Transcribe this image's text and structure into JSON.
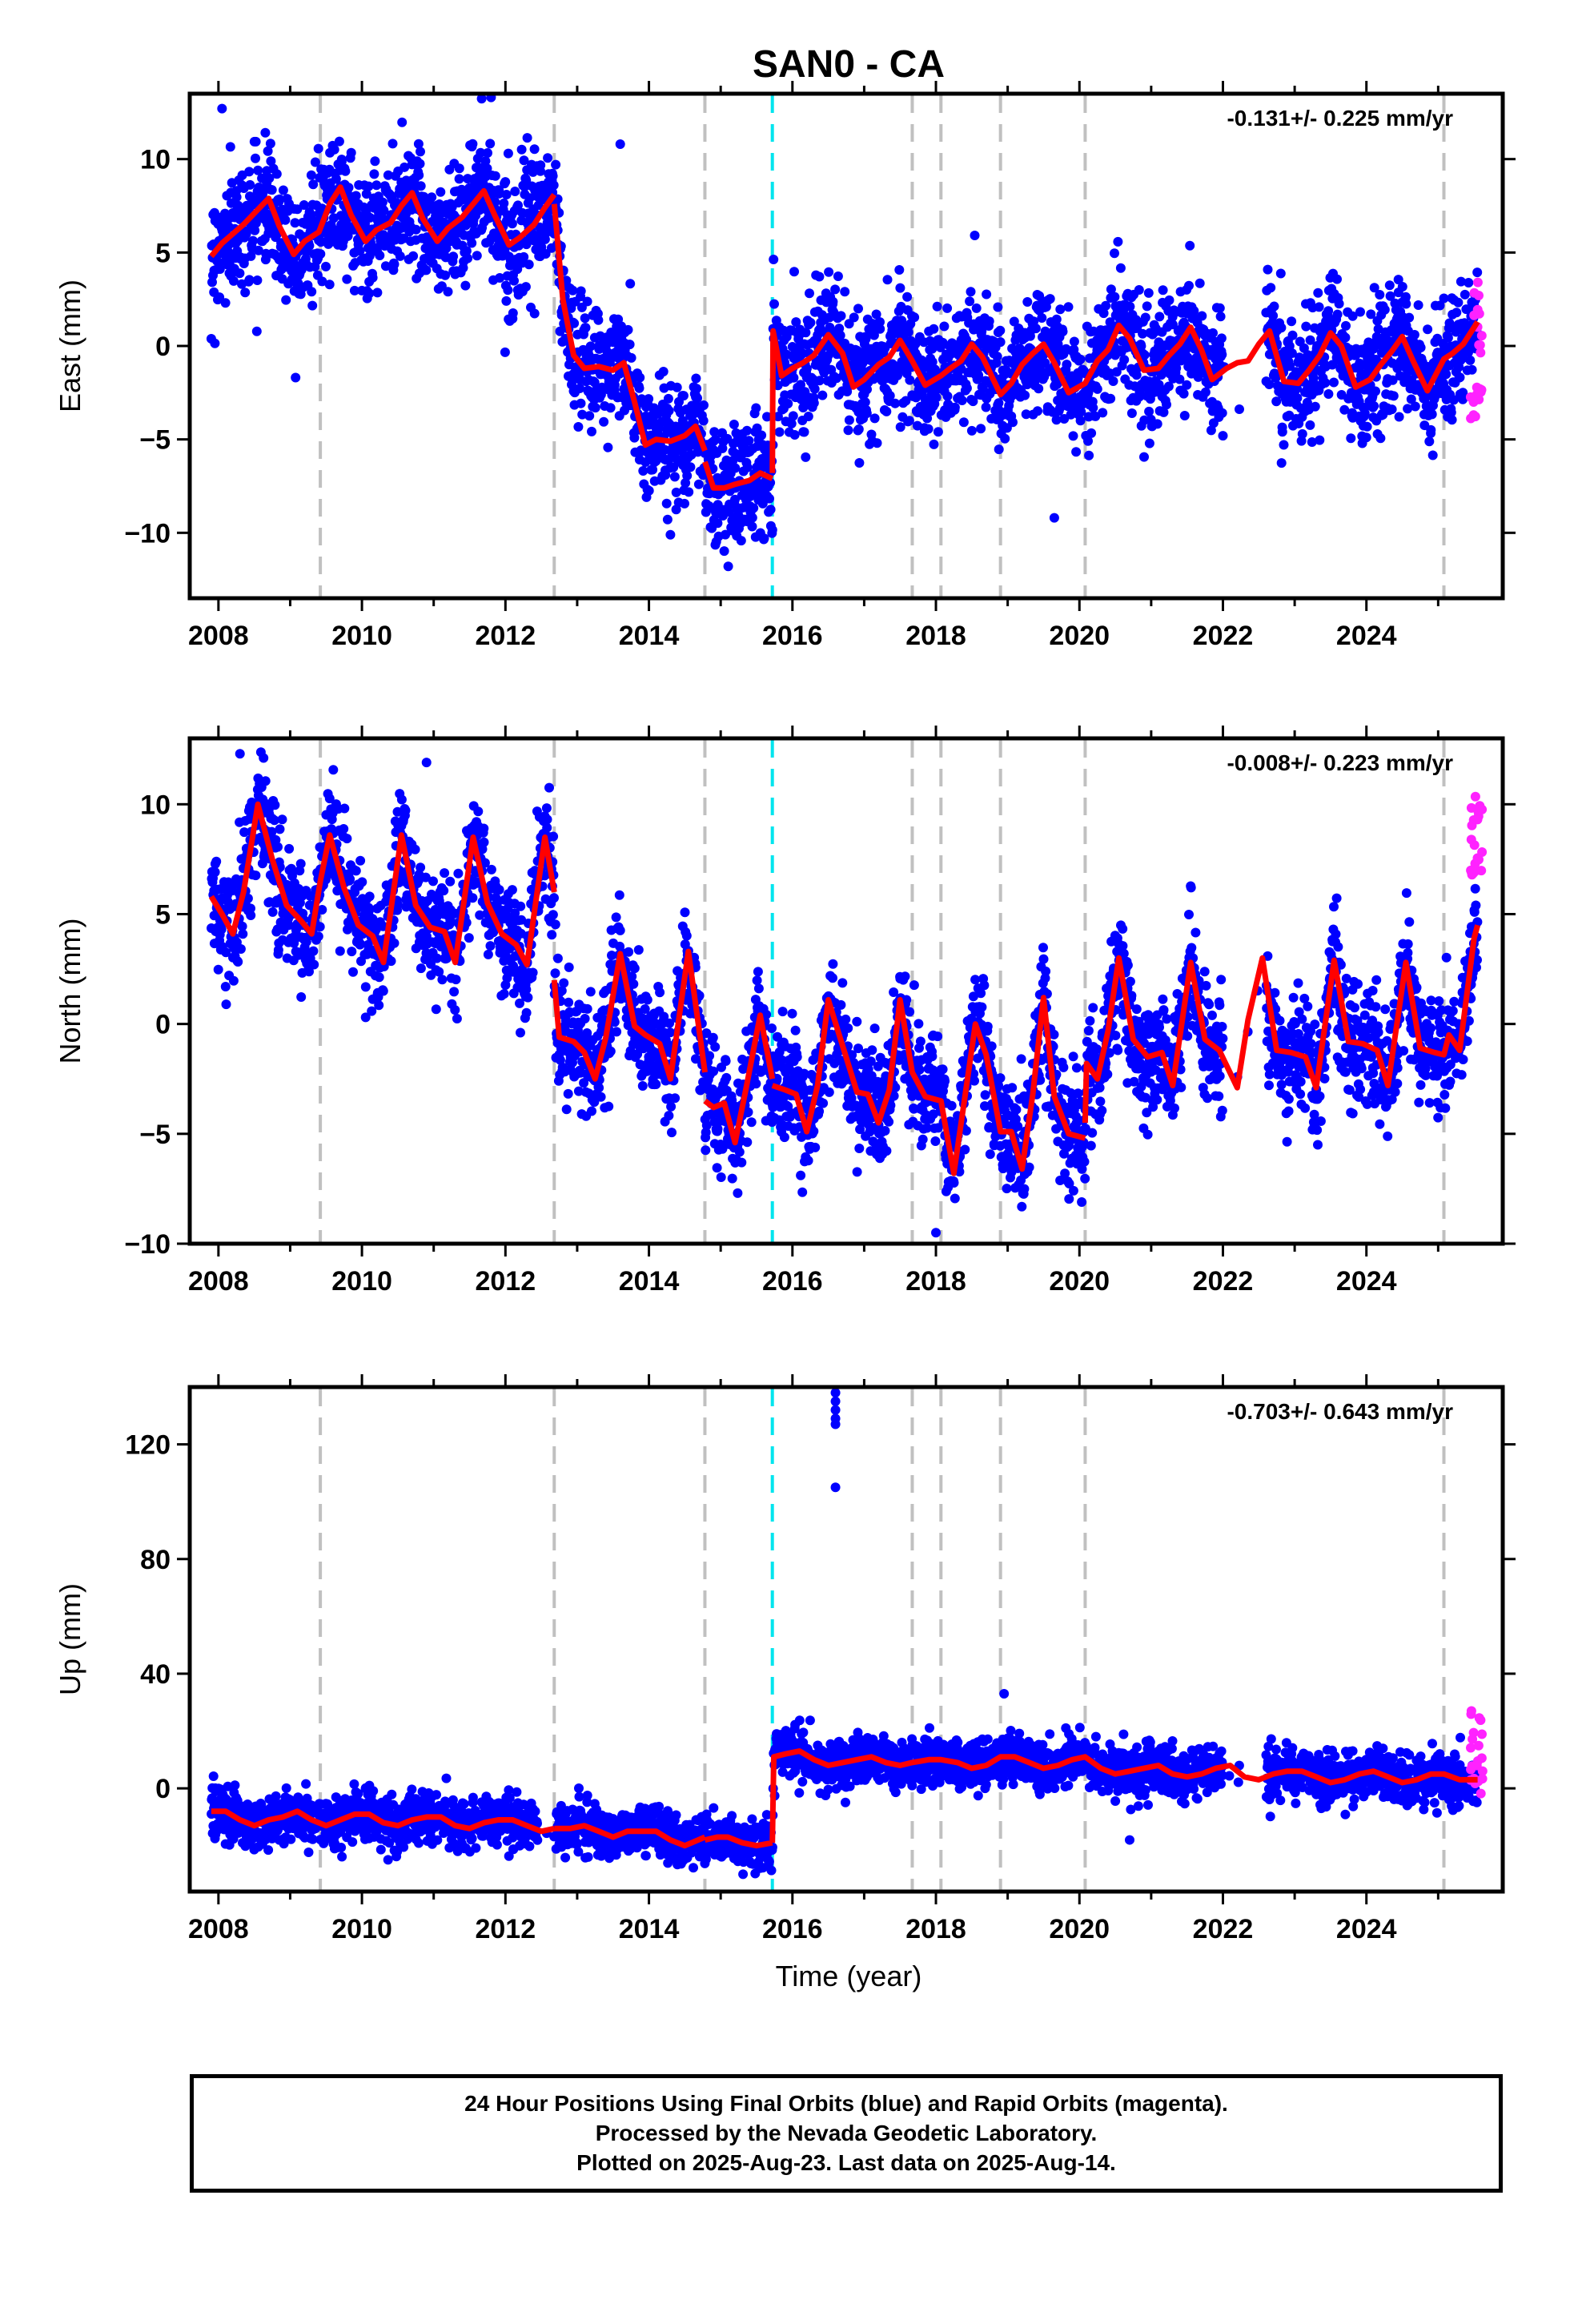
{
  "title": "SAN0 - CA",
  "x_label": "Time (year)",
  "footer": {
    "line1": "24 Hour Positions Using Final Orbits (blue) and Rapid Orbits (magenta).",
    "line2": "Processed by the Nevada Geodetic Laboratory.",
    "line3": "Plotted on 2025-Aug-23. Last data on 2025-Aug-14."
  },
  "colors": {
    "final_orbits": "#0000ff",
    "rapid_orbits": "#ff22ff",
    "model": "#ff0000",
    "equipment_change": "#c0c0c0",
    "other_event": "#00e5ee"
  },
  "chart_data": [
    {
      "type": "scatter",
      "ylabel": "East (mm)",
      "rate_text": "-0.131+/- 0.225 mm/yr",
      "xlim": [
        2007.6,
        2025.9
      ],
      "ylim": [
        -13.5,
        13.5
      ],
      "xticks": [
        2008,
        2010,
        2012,
        2014,
        2016,
        2018,
        2020,
        2022,
        2024
      ],
      "yticks": [
        -10,
        -5,
        0,
        5,
        10
      ],
      "grid": false,
      "vlines_dashed_gray": [
        2009.42,
        2012.68,
        2014.78,
        2017.67,
        2018.07,
        2018.9,
        2020.08,
        2025.08
      ],
      "vlines_dashed_cyan": [
        2015.72
      ],
      "model_segments": [
        {
          "x": [
            2007.9,
            2008.05,
            2008.2,
            2008.35,
            2008.55,
            2008.7,
            2008.85,
            2009.05,
            2009.2,
            2009.4,
            2009.55,
            2009.7,
            2009.85,
            2010.05,
            2010.2,
            2010.4,
            2010.55,
            2010.7,
            2010.85,
            2011.05,
            2011.2,
            2011.4,
            2011.55,
            2011.7,
            2011.85,
            2012.05,
            2012.2,
            2012.4,
            2012.55,
            2012.68
          ],
          "y": [
            4.8,
            5.5,
            6.0,
            6.5,
            7.3,
            7.9,
            6.4,
            4.9,
            5.6,
            6.1,
            7.6,
            8.5,
            7.0,
            5.6,
            6.2,
            6.6,
            7.5,
            8.2,
            6.8,
            5.6,
            6.3,
            6.9,
            7.6,
            8.3,
            7.0,
            5.4,
            5.8,
            6.5,
            7.4,
            8.1
          ]
        },
        {
          "x": [
            2012.68,
            2012.8,
            2012.95,
            2013.1,
            2013.3,
            2013.5,
            2013.65,
            2013.8,
            2013.95,
            2014.1,
            2014.3,
            2014.5,
            2014.65,
            2014.78
          ],
          "y": [
            7.6,
            2.5,
            -0.5,
            -1.2,
            -1.1,
            -1.3,
            -0.9,
            -3.0,
            -5.3,
            -5.0,
            -5.1,
            -4.8,
            -4.3,
            -5.6
          ]
        },
        {
          "x": [
            2014.78,
            2014.9,
            2015.05,
            2015.2,
            2015.4,
            2015.55,
            2015.72
          ],
          "y": [
            -6.2,
            -7.6,
            -7.6,
            -7.4,
            -7.2,
            -6.8,
            -7.1
          ]
        },
        {
          "x": [
            2015.72,
            2015.73,
            2015.85,
            2016.0,
            2016.15,
            2016.3,
            2016.5,
            2016.7,
            2016.85,
            2017.0,
            2017.2,
            2017.35,
            2017.5,
            2017.67,
            2017.85,
            2018.07,
            2018.2,
            2018.35,
            2018.5,
            2018.65,
            2018.9,
            2019.05,
            2019.2,
            2019.35,
            2019.5,
            2019.65,
            2019.85,
            2020.08,
            2020.25,
            2020.4,
            2020.55,
            2020.7,
            2020.9,
            2021.1,
            2021.25,
            2021.4,
            2021.55,
            2021.7,
            2021.85,
            2022.05,
            2022.2,
            2022.35,
            2022.5,
            2022.65,
            2022.85,
            2023.05,
            2023.2,
            2023.35,
            2023.5,
            2023.65,
            2023.85,
            2024.05,
            2024.2,
            2024.35,
            2024.5,
            2024.65,
            2024.85,
            2025.08,
            2025.2,
            2025.35,
            2025.5,
            2025.55
          ],
          "y": [
            -6.8,
            0.8,
            -1.6,
            -1.2,
            -0.9,
            -0.5,
            0.6,
            -0.4,
            -2.2,
            -1.8,
            -1.0,
            -0.6,
            0.3,
            -0.8,
            -2.1,
            -1.6,
            -1.2,
            -0.8,
            0.1,
            -0.6,
            -2.6,
            -2.0,
            -1.0,
            -0.4,
            0.1,
            -0.9,
            -2.5,
            -2.0,
            -0.8,
            -0.2,
            1.1,
            0.4,
            -1.3,
            -1.2,
            -0.5,
            0.1,
            1.0,
            -0.2,
            -1.8,
            -1.2,
            -0.9,
            -0.8,
            0.1,
            0.8,
            -1.9,
            -2.0,
            -1.3,
            -0.5,
            0.7,
            0.0,
            -2.2,
            -1.8,
            -1.0,
            -0.3,
            0.5,
            -0.8,
            -2.4,
            -0.7,
            -0.4,
            0.1,
            1.0,
            1.3
          ]
        }
      ],
      "noise_sd": 1.6,
      "n_points": 3600,
      "gaps": [
        [
          2022.0,
          2022.6
        ]
      ],
      "outliers": [
        {
          "x": 2013.6,
          "y": 10.8
        },
        {
          "x": 2019.65,
          "y": -9.2
        },
        {
          "x": 2008.05,
          "y": 12.7
        },
        {
          "x": 2011.8,
          "y": 13.3
        }
      ],
      "rapid_points": {
        "x_start": 2025.45,
        "x_end": 2025.62,
        "y_min": -4.2,
        "y_max": 3.6,
        "count": 22
      }
    },
    {
      "type": "scatter",
      "ylabel": "North (mm)",
      "rate_text": "-0.008+/- 0.223 mm/yr",
      "xlim": [
        2007.6,
        2025.9
      ],
      "ylim": [
        -10,
        13
      ],
      "xticks": [
        2008,
        2010,
        2012,
        2014,
        2016,
        2018,
        2020,
        2022,
        2024
      ],
      "yticks": [
        -10,
        -5,
        0,
        5,
        10
      ],
      "grid": false,
      "vlines_dashed_gray": [
        2009.42,
        2012.68,
        2014.78,
        2017.67,
        2018.07,
        2018.9,
        2020.08,
        2025.08
      ],
      "vlines_dashed_cyan": [
        2015.72
      ],
      "model_segments": [
        {
          "x": [
            2007.9,
            2008.05,
            2008.2,
            2008.35,
            2008.55,
            2008.75,
            2008.95,
            2009.15,
            2009.3,
            2009.42,
            2009.55,
            2009.75,
            2009.95,
            2010.15,
            2010.3,
            2010.55,
            2010.75,
            2010.95,
            2011.15,
            2011.3,
            2011.55,
            2011.75,
            2011.95,
            2012.15,
            2012.3,
            2012.55,
            2012.68
          ],
          "y": [
            5.8,
            5.0,
            4.1,
            6.0,
            10.0,
            7.5,
            5.4,
            4.7,
            4.1,
            6.5,
            8.6,
            6.2,
            4.5,
            4.0,
            2.8,
            8.6,
            5.4,
            4.4,
            4.2,
            2.8,
            8.5,
            5.5,
            4.1,
            3.6,
            2.7,
            8.5,
            6.0
          ]
        },
        {
          "x": [
            2012.68,
            2012.75,
            2012.95,
            2013.1,
            2013.25,
            2013.4,
            2013.6,
            2013.8,
            2013.95,
            2014.15,
            2014.3,
            2014.55,
            2014.78
          ],
          "y": [
            2.0,
            -0.6,
            -0.8,
            -1.3,
            -2.5,
            -0.6,
            3.2,
            -0.1,
            -0.5,
            -0.9,
            -2.5,
            3.3,
            -2.2
          ]
        },
        {
          "x": [
            2014.78,
            2014.9,
            2015.05,
            2015.2,
            2015.35,
            2015.55,
            2015.72
          ],
          "y": [
            -3.5,
            -3.8,
            -3.6,
            -5.4,
            -3.0,
            0.4,
            -2.5
          ]
        },
        {
          "x": [
            2015.72,
            2015.9,
            2016.05,
            2016.2,
            2016.35,
            2016.5,
            2016.7,
            2016.9,
            2017.05,
            2017.2,
            2017.35,
            2017.5,
            2017.67,
            2017.85,
            2018.07,
            2018.25,
            2018.4,
            2018.55,
            2018.7,
            2018.9,
            2019.05,
            2019.2,
            2019.35,
            2019.5,
            2019.65,
            2019.85,
            2020.08
          ],
          "y": [
            -2.8,
            -3.0,
            -3.2,
            -4.9,
            -2.8,
            1.1,
            -1.0,
            -3.1,
            -3.2,
            -4.5,
            -3.0,
            1.1,
            -2.2,
            -3.3,
            -3.5,
            -6.8,
            -3.4,
            0.0,
            -1.4,
            -4.9,
            -4.9,
            -6.6,
            -3.2,
            1.2,
            -3.3,
            -5.0,
            -5.2
          ]
        },
        {
          "x": [
            2020.08,
            2020.1,
            2020.25,
            2020.4,
            2020.55,
            2020.75,
            2020.95,
            2021.15,
            2021.3,
            2021.55,
            2021.75,
            2021.95,
            2022.2,
            2022.35,
            2022.55,
            2022.75,
            2022.95,
            2023.15,
            2023.3,
            2023.55,
            2023.75,
            2023.95,
            2024.15,
            2024.3,
            2024.55,
            2024.75,
            2024.95,
            2025.08,
            2025.15,
            2025.3,
            2025.5,
            2025.55
          ],
          "y": [
            -4.5,
            -1.8,
            -2.5,
            -0.3,
            3.0,
            -0.7,
            -1.5,
            -1.3,
            -2.8,
            2.8,
            -0.7,
            -1.2,
            -2.9,
            0.2,
            3.0,
            -1.2,
            -1.3,
            -1.5,
            -2.9,
            2.9,
            -0.8,
            -0.9,
            -1.2,
            -2.8,
            2.8,
            -1.1,
            -1.3,
            -1.4,
            -0.5,
            -1.2,
            3.9,
            4.5
          ]
        }
      ],
      "noise_sd": 1.3,
      "n_points": 3600,
      "gaps": [
        [
          2022.0,
          2022.6
        ]
      ],
      "outliers": [
        {
          "x": 2018.0,
          "y": -9.5
        },
        {
          "x": 2008.3,
          "y": 12.3
        },
        {
          "x": 2010.9,
          "y": 11.9
        }
      ],
      "rapid_points": {
        "x_start": 2025.45,
        "x_end": 2025.62,
        "y_min": 6.0,
        "y_max": 10.8,
        "count": 22
      }
    },
    {
      "type": "scatter",
      "ylabel": "Up (mm)",
      "rate_text": "-0.703+/- 0.643 mm/yr",
      "xlim": [
        2007.6,
        2025.9
      ],
      "ylim": [
        -36,
        140
      ],
      "xticks": [
        2008,
        2010,
        2012,
        2014,
        2016,
        2018,
        2020,
        2022,
        2024
      ],
      "yticks": [
        0,
        40,
        80,
        120
      ],
      "grid": false,
      "vlines_dashed_gray": [
        2009.42,
        2012.68,
        2014.78,
        2017.67,
        2018.07,
        2018.9,
        2020.08,
        2025.08
      ],
      "vlines_dashed_cyan": [
        2015.72
      ],
      "model_segments": [
        {
          "x": [
            2007.9,
            2008.1,
            2008.3,
            2008.5,
            2008.7,
            2008.9,
            2009.1,
            2009.3,
            2009.5,
            2009.7,
            2009.9,
            2010.1,
            2010.3,
            2010.5,
            2010.7,
            2010.9,
            2011.1,
            2011.3,
            2011.5,
            2011.7,
            2011.9,
            2012.1,
            2012.3,
            2012.5,
            2012.68
          ],
          "y": [
            -8,
            -8,
            -11,
            -13,
            -11,
            -10,
            -8,
            -11,
            -13,
            -11,
            -9,
            -9,
            -12,
            -13,
            -11,
            -10,
            -10,
            -13,
            -14,
            -12,
            -11,
            -11,
            -13,
            -15,
            -14
          ]
        },
        {
          "x": [
            2012.68,
            2012.9,
            2013.1,
            2013.3,
            2013.5,
            2013.7,
            2013.9,
            2014.1,
            2014.3,
            2014.5,
            2014.78
          ],
          "y": [
            -14,
            -14,
            -13,
            -15,
            -17,
            -15,
            -15,
            -15,
            -18,
            -20,
            -17
          ]
        },
        {
          "x": [
            2014.78,
            2014.95,
            2015.1,
            2015.3,
            2015.5,
            2015.72
          ],
          "y": [
            -18,
            -17,
            -17,
            -19,
            -20,
            -19
          ]
        },
        {
          "x": [
            2015.72,
            2015.74,
            2015.9,
            2016.1,
            2016.3,
            2016.5,
            2016.7,
            2016.9,
            2017.1,
            2017.3,
            2017.5,
            2017.67,
            2017.9,
            2018.07,
            2018.3,
            2018.5,
            2018.7,
            2018.9,
            2019.1,
            2019.3,
            2019.5,
            2019.7,
            2019.9,
            2020.08,
            2020.3,
            2020.5,
            2020.7,
            2020.9,
            2021.1,
            2021.3,
            2021.5,
            2021.7,
            2021.9,
            2022.1,
            2022.3,
            2022.5,
            2022.7,
            2022.9,
            2023.1,
            2023.3,
            2023.5,
            2023.7,
            2023.9,
            2024.1,
            2024.3,
            2024.5,
            2024.7,
            2024.9,
            2025.08,
            2025.3,
            2025.55
          ],
          "y": [
            -19,
            11,
            12,
            13,
            10,
            8,
            9,
            10,
            11,
            9,
            8,
            9,
            10,
            10,
            9,
            7,
            8,
            11,
            11,
            9,
            7,
            8,
            10,
            11,
            7,
            5,
            6,
            7,
            8,
            5,
            4,
            5,
            7,
            8,
            4,
            3,
            5,
            6,
            6,
            4,
            2,
            3,
            5,
            6,
            4,
            2,
            3,
            5,
            5,
            3,
            3
          ]
        }
      ],
      "noise_sd": 4.3,
      "n_points": 3600,
      "gaps": [
        [
          2022.0,
          2022.6
        ],
        [
          2012.45,
          2012.7
        ]
      ],
      "outliers": [
        {
          "x": 2016.6,
          "y": 138
        },
        {
          "x": 2016.6,
          "y": 135
        },
        {
          "x": 2016.6,
          "y": 132
        },
        {
          "x": 2016.6,
          "y": 129
        },
        {
          "x": 2016.6,
          "y": 127
        },
        {
          "x": 2016.6,
          "y": 105
        },
        {
          "x": 2018.95,
          "y": 33
        },
        {
          "x": 2020.7,
          "y": -18
        }
      ],
      "rapid_points": {
        "x_start": 2025.45,
        "x_end": 2025.62,
        "y_min": -2,
        "y_max": 27,
        "count": 22
      }
    }
  ]
}
